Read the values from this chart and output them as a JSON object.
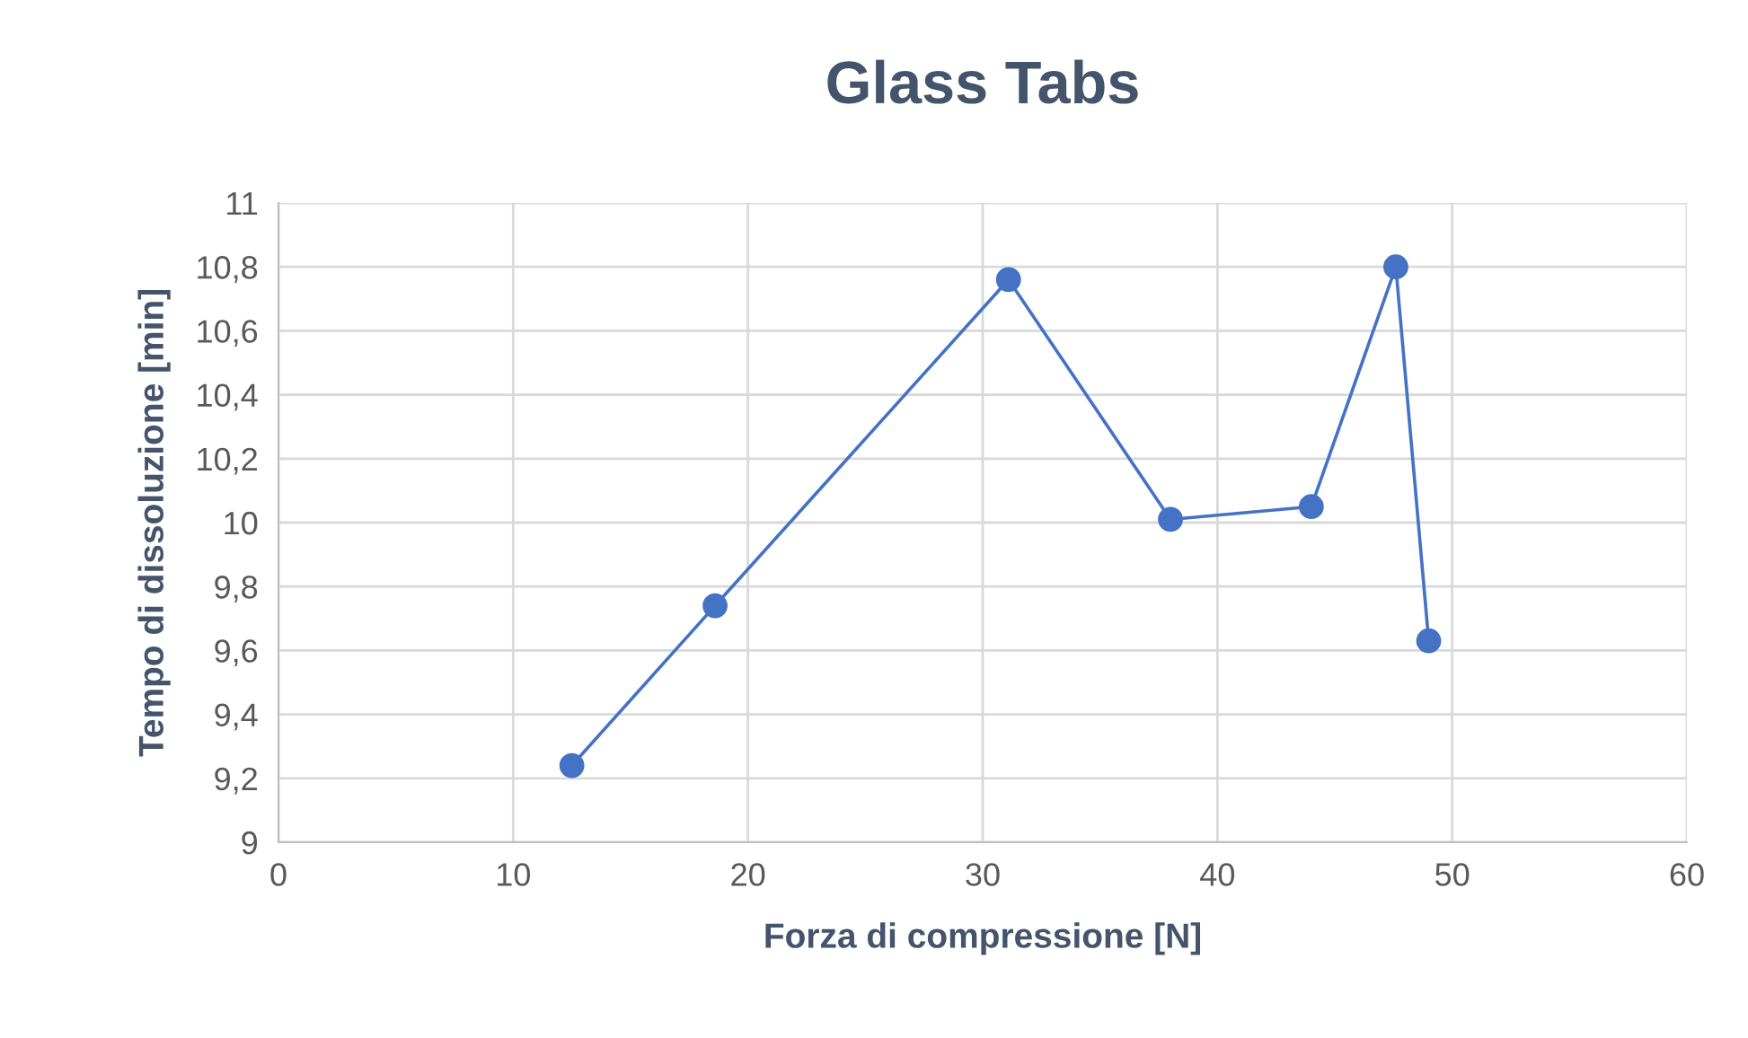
{
  "chart_data": {
    "type": "line",
    "title": "Glass Tabs",
    "xlabel": "Forza di compressione [N]",
    "ylabel": "Tempo di dissoluzione [min]",
    "x": [
      12.5,
      18.6,
      31.1,
      38.0,
      44.0,
      47.6,
      49.0
    ],
    "series": [
      {
        "color": "#4472c4",
        "values": [
          9.24,
          9.74,
          10.76,
          10.01,
          10.05,
          10.8,
          9.63
        ]
      }
    ],
    "xlim": [
      0,
      60
    ],
    "xticks": [
      0,
      10,
      20,
      30,
      40,
      50,
      60
    ],
    "ylim": [
      9,
      11
    ],
    "yticks": [
      9,
      {
        "value": 9.2,
        "label": "9,2"
      },
      {
        "value": 9.4,
        "label": "9,4"
      },
      {
        "value": 9.6,
        "label": "9,6"
      },
      {
        "value": 9.8,
        "label": "9,8"
      },
      10,
      {
        "value": 10.2,
        "label": "10,2"
      },
      {
        "value": 10.4,
        "label": "10,4"
      },
      {
        "value": 10.6,
        "label": "10,6"
      },
      {
        "value": 10.8,
        "label": "10,8"
      },
      11
    ],
    "grid": true,
    "marker": "circle",
    "line_style": "solid",
    "legend": false
  }
}
